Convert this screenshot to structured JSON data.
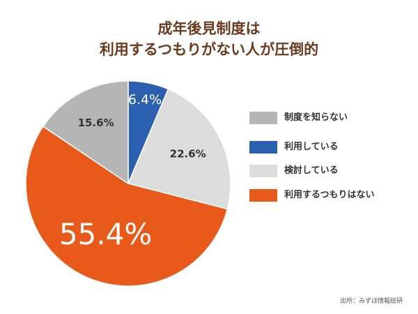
{
  "chart_data": {
    "type": "pie",
    "title_lines": [
      "成年後見制度は",
      "利用するつもりがない人が圧倒的"
    ],
    "slices": [
      {
        "label": "利用している",
        "value": 6.4,
        "display": "6.4%",
        "color": "#2b5fb0"
      },
      {
        "label": "検討している",
        "value": 22.6,
        "display": "22.6%",
        "color": "#dcdcdc"
      },
      {
        "label": "利用するつもりはない",
        "value": 55.4,
        "display": "55.4%",
        "color": "#e85a1a"
      },
      {
        "label": "制度を知らない",
        "value": 15.6,
        "display": "15.6%",
        "color": "#b5b5b5"
      }
    ],
    "legend": {
      "placement": "right",
      "items": [
        {
          "label": "制度を知らない",
          "color": "#b5b5b5"
        },
        {
          "label": "利用している",
          "color": "#2b5fb0"
        },
        {
          "label": "検討している",
          "color": "#dcdcdc"
        },
        {
          "label": "利用するつもりはない",
          "color": "#e85a1a"
        }
      ]
    },
    "source": "出所：みずほ情報総研"
  }
}
